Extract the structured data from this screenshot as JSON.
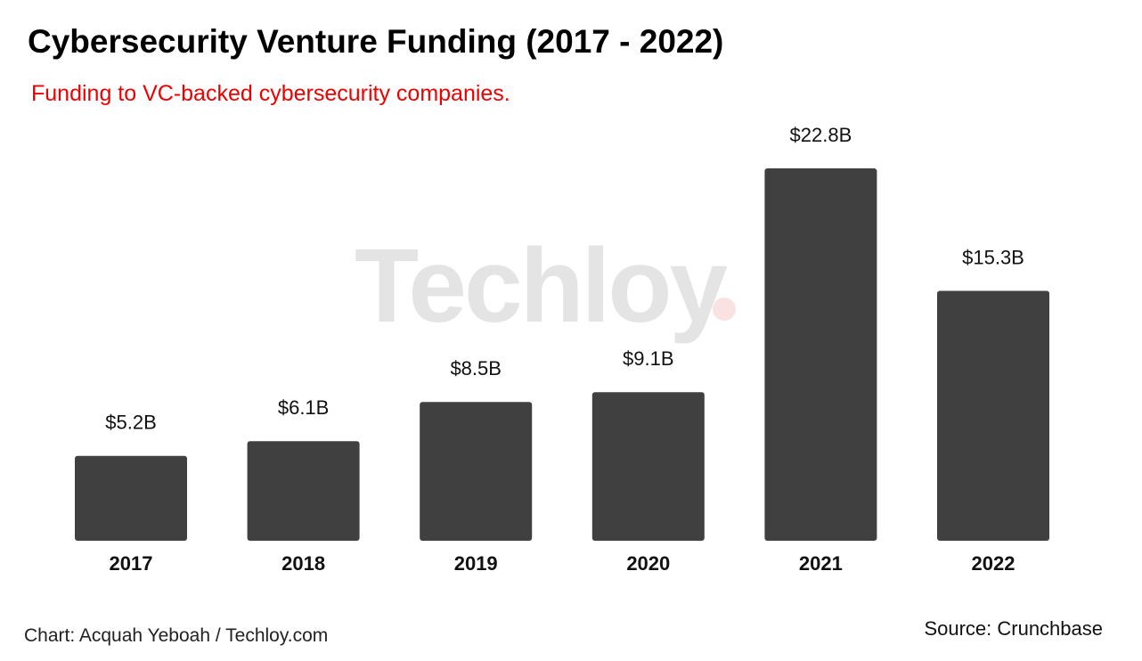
{
  "chart_data": {
    "type": "bar",
    "title": "Cybersecurity Venture Funding (2017 - 2022)",
    "subtitle": "Funding to VC-backed cybersecurity companies.",
    "categories": [
      "2017",
      "2018",
      "2019",
      "2020",
      "2021",
      "2022"
    ],
    "values": [
      5.2,
      6.1,
      8.5,
      9.1,
      22.8,
      15.3
    ],
    "data_labels": [
      "$5.2B",
      "$6.1B",
      "$8.5B",
      "$9.1B",
      "$22.8B",
      "$15.3B"
    ],
    "unit": "USD billions",
    "ylim": [
      0,
      22.8
    ],
    "grid": false,
    "legend": "none",
    "bar_color": "#404040",
    "subtitle_color": "#ee0000",
    "watermark_dot_color": "#fbe2e2"
  },
  "watermark": "Techloy",
  "footer": {
    "credit": "Chart: Acquah Yeboah / Techloy.com",
    "source": "Source: Crunchbase"
  }
}
